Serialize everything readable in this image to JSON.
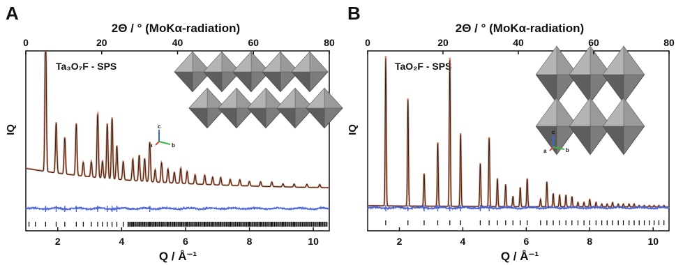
{
  "colors": {
    "observed": "#d98a6a",
    "calculated": "#1a1a1a",
    "difference": "#4a64d8",
    "reflections": "#111111",
    "polyhedra": "#7c7c7c"
  },
  "chart_data": [
    {
      "type": "line",
      "panel": "A",
      "sample_label": "Ta₃O₇F - SPS",
      "top_axis_label": "2Θ / ° (MoKα-radiation)",
      "bottom_axis_label": "Q / Å⁻¹",
      "ylabel": "IQ",
      "xlim_Q": [
        1.0,
        10.5
      ],
      "xlim_2theta": [
        0,
        80
      ],
      "bottom_ticks": [
        2,
        4,
        6,
        8,
        10
      ],
      "top_ticks": [
        0,
        20,
        40,
        60,
        80
      ],
      "grid": false,
      "inset": "structure view with crystallographic axes a, b, c",
      "axis_labels": [
        "a",
        "b",
        "c"
      ],
      "series": [
        {
          "role": "observed",
          "peaks": [
            {
              "Q": 1.62,
              "IQ": 100
            },
            {
              "Q": 1.95,
              "IQ": 33
            },
            {
              "Q": 2.22,
              "IQ": 24
            },
            {
              "Q": 2.58,
              "IQ": 34
            },
            {
              "Q": 2.8,
              "IQ": 9
            },
            {
              "Q": 3.05,
              "IQ": 10
            },
            {
              "Q": 3.25,
              "IQ": 42
            },
            {
              "Q": 3.4,
              "IQ": 11
            },
            {
              "Q": 3.55,
              "IQ": 36
            },
            {
              "Q": 3.7,
              "IQ": 40
            },
            {
              "Q": 3.85,
              "IQ": 22
            },
            {
              "Q": 4.05,
              "IQ": 12
            },
            {
              "Q": 4.35,
              "IQ": 14
            },
            {
              "Q": 4.55,
              "IQ": 17
            },
            {
              "Q": 4.72,
              "IQ": 15
            },
            {
              "Q": 4.88,
              "IQ": 26
            },
            {
              "Q": 5.05,
              "IQ": 8
            },
            {
              "Q": 5.25,
              "IQ": 13
            },
            {
              "Q": 5.45,
              "IQ": 9
            },
            {
              "Q": 5.65,
              "IQ": 7
            },
            {
              "Q": 5.85,
              "IQ": 10
            },
            {
              "Q": 6.05,
              "IQ": 8
            },
            {
              "Q": 6.3,
              "IQ": 6
            },
            {
              "Q": 6.6,
              "IQ": 6
            },
            {
              "Q": 6.85,
              "IQ": 5
            },
            {
              "Q": 7.1,
              "IQ": 5
            },
            {
              "Q": 7.4,
              "IQ": 4
            },
            {
              "Q": 7.7,
              "IQ": 4
            },
            {
              "Q": 8.0,
              "IQ": 3
            },
            {
              "Q": 8.35,
              "IQ": 3
            },
            {
              "Q": 8.7,
              "IQ": 3
            },
            {
              "Q": 9.05,
              "IQ": 2
            },
            {
              "Q": 9.4,
              "IQ": 2
            },
            {
              "Q": 9.8,
              "IQ": 2
            },
            {
              "Q": 10.2,
              "IQ": 2
            }
          ]
        },
        {
          "role": "calculated",
          "same_as": "observed"
        },
        {
          "role": "difference"
        }
      ],
      "reflection_ticks_Q": [
        1.1,
        1.3,
        1.62,
        1.95,
        2.22,
        2.58,
        2.8,
        3.05,
        3.25,
        3.4,
        3.55,
        3.7,
        3.85,
        4.05,
        4.2,
        4.35,
        4.55,
        4.72,
        4.88,
        5.05,
        5.25,
        5.45,
        5.65,
        5.85,
        6.05,
        6.3,
        6.6,
        6.85,
        7.1,
        7.4,
        7.7,
        8.0,
        8.35,
        8.7,
        9.05,
        9.4,
        9.8,
        10.2
      ]
    },
    {
      "type": "line",
      "panel": "B",
      "sample_label": "TaO₂F - SPS",
      "top_axis_label": "2Θ / ° (MoKα-radiation)",
      "bottom_axis_label": "Q / Å⁻¹",
      "ylabel": "IQ",
      "xlim_Q": [
        1.0,
        10.5
      ],
      "xlim_2theta": [
        0,
        80
      ],
      "bottom_ticks": [
        2,
        4,
        6,
        8,
        10
      ],
      "top_ticks": [
        0,
        20,
        40,
        60,
        80
      ],
      "grid": false,
      "inset": "structure view with crystallographic axes a, b, c",
      "axis_labels": [
        "a",
        "b",
        "c"
      ],
      "series": [
        {
          "role": "observed",
          "peaks": [
            {
              "Q": 1.57,
              "IQ": 100
            },
            {
              "Q": 2.27,
              "IQ": 72
            },
            {
              "Q": 2.78,
              "IQ": 22
            },
            {
              "Q": 3.21,
              "IQ": 43
            },
            {
              "Q": 3.59,
              "IQ": 100
            },
            {
              "Q": 3.93,
              "IQ": 49
            },
            {
              "Q": 4.55,
              "IQ": 29
            },
            {
              "Q": 4.83,
              "IQ": 47
            },
            {
              "Q": 5.09,
              "IQ": 19
            },
            {
              "Q": 5.35,
              "IQ": 15
            },
            {
              "Q": 5.58,
              "IQ": 7
            },
            {
              "Q": 5.81,
              "IQ": 13
            },
            {
              "Q": 6.03,
              "IQ": 19
            },
            {
              "Q": 6.45,
              "IQ": 5
            },
            {
              "Q": 6.65,
              "IQ": 17
            },
            {
              "Q": 6.85,
              "IQ": 9
            },
            {
              "Q": 7.05,
              "IQ": 8
            },
            {
              "Q": 7.25,
              "IQ": 8
            },
            {
              "Q": 7.44,
              "IQ": 7
            },
            {
              "Q": 7.63,
              "IQ": 3
            },
            {
              "Q": 7.82,
              "IQ": 3
            },
            {
              "Q": 8.0,
              "IQ": 5
            },
            {
              "Q": 8.2,
              "IQ": 3
            },
            {
              "Q": 8.38,
              "IQ": 2
            },
            {
              "Q": 8.55,
              "IQ": 2
            },
            {
              "Q": 8.72,
              "IQ": 3
            },
            {
              "Q": 8.9,
              "IQ": 2
            },
            {
              "Q": 9.06,
              "IQ": 2
            },
            {
              "Q": 9.24,
              "IQ": 2
            },
            {
              "Q": 9.4,
              "IQ": 2
            },
            {
              "Q": 9.56,
              "IQ": 1
            },
            {
              "Q": 9.72,
              "IQ": 1
            },
            {
              "Q": 9.88,
              "IQ": 1
            },
            {
              "Q": 10.03,
              "IQ": 1
            },
            {
              "Q": 10.18,
              "IQ": 1
            },
            {
              "Q": 10.34,
              "IQ": 1
            }
          ]
        },
        {
          "role": "calculated",
          "same_as": "observed"
        },
        {
          "role": "difference"
        }
      ],
      "reflection_ticks_Q": [
        1.57,
        2.27,
        2.78,
        3.21,
        3.59,
        3.93,
        4.55,
        4.83,
        5.09,
        5.35,
        5.58,
        5.81,
        6.03,
        6.45,
        6.65,
        6.85,
        7.05,
        7.25,
        7.44,
        7.63,
        7.82,
        8.0,
        8.2,
        8.38,
        8.55,
        8.72,
        8.9,
        9.06,
        9.24,
        9.4,
        9.56,
        9.72,
        9.88,
        10.03,
        10.18,
        10.34
      ]
    }
  ]
}
